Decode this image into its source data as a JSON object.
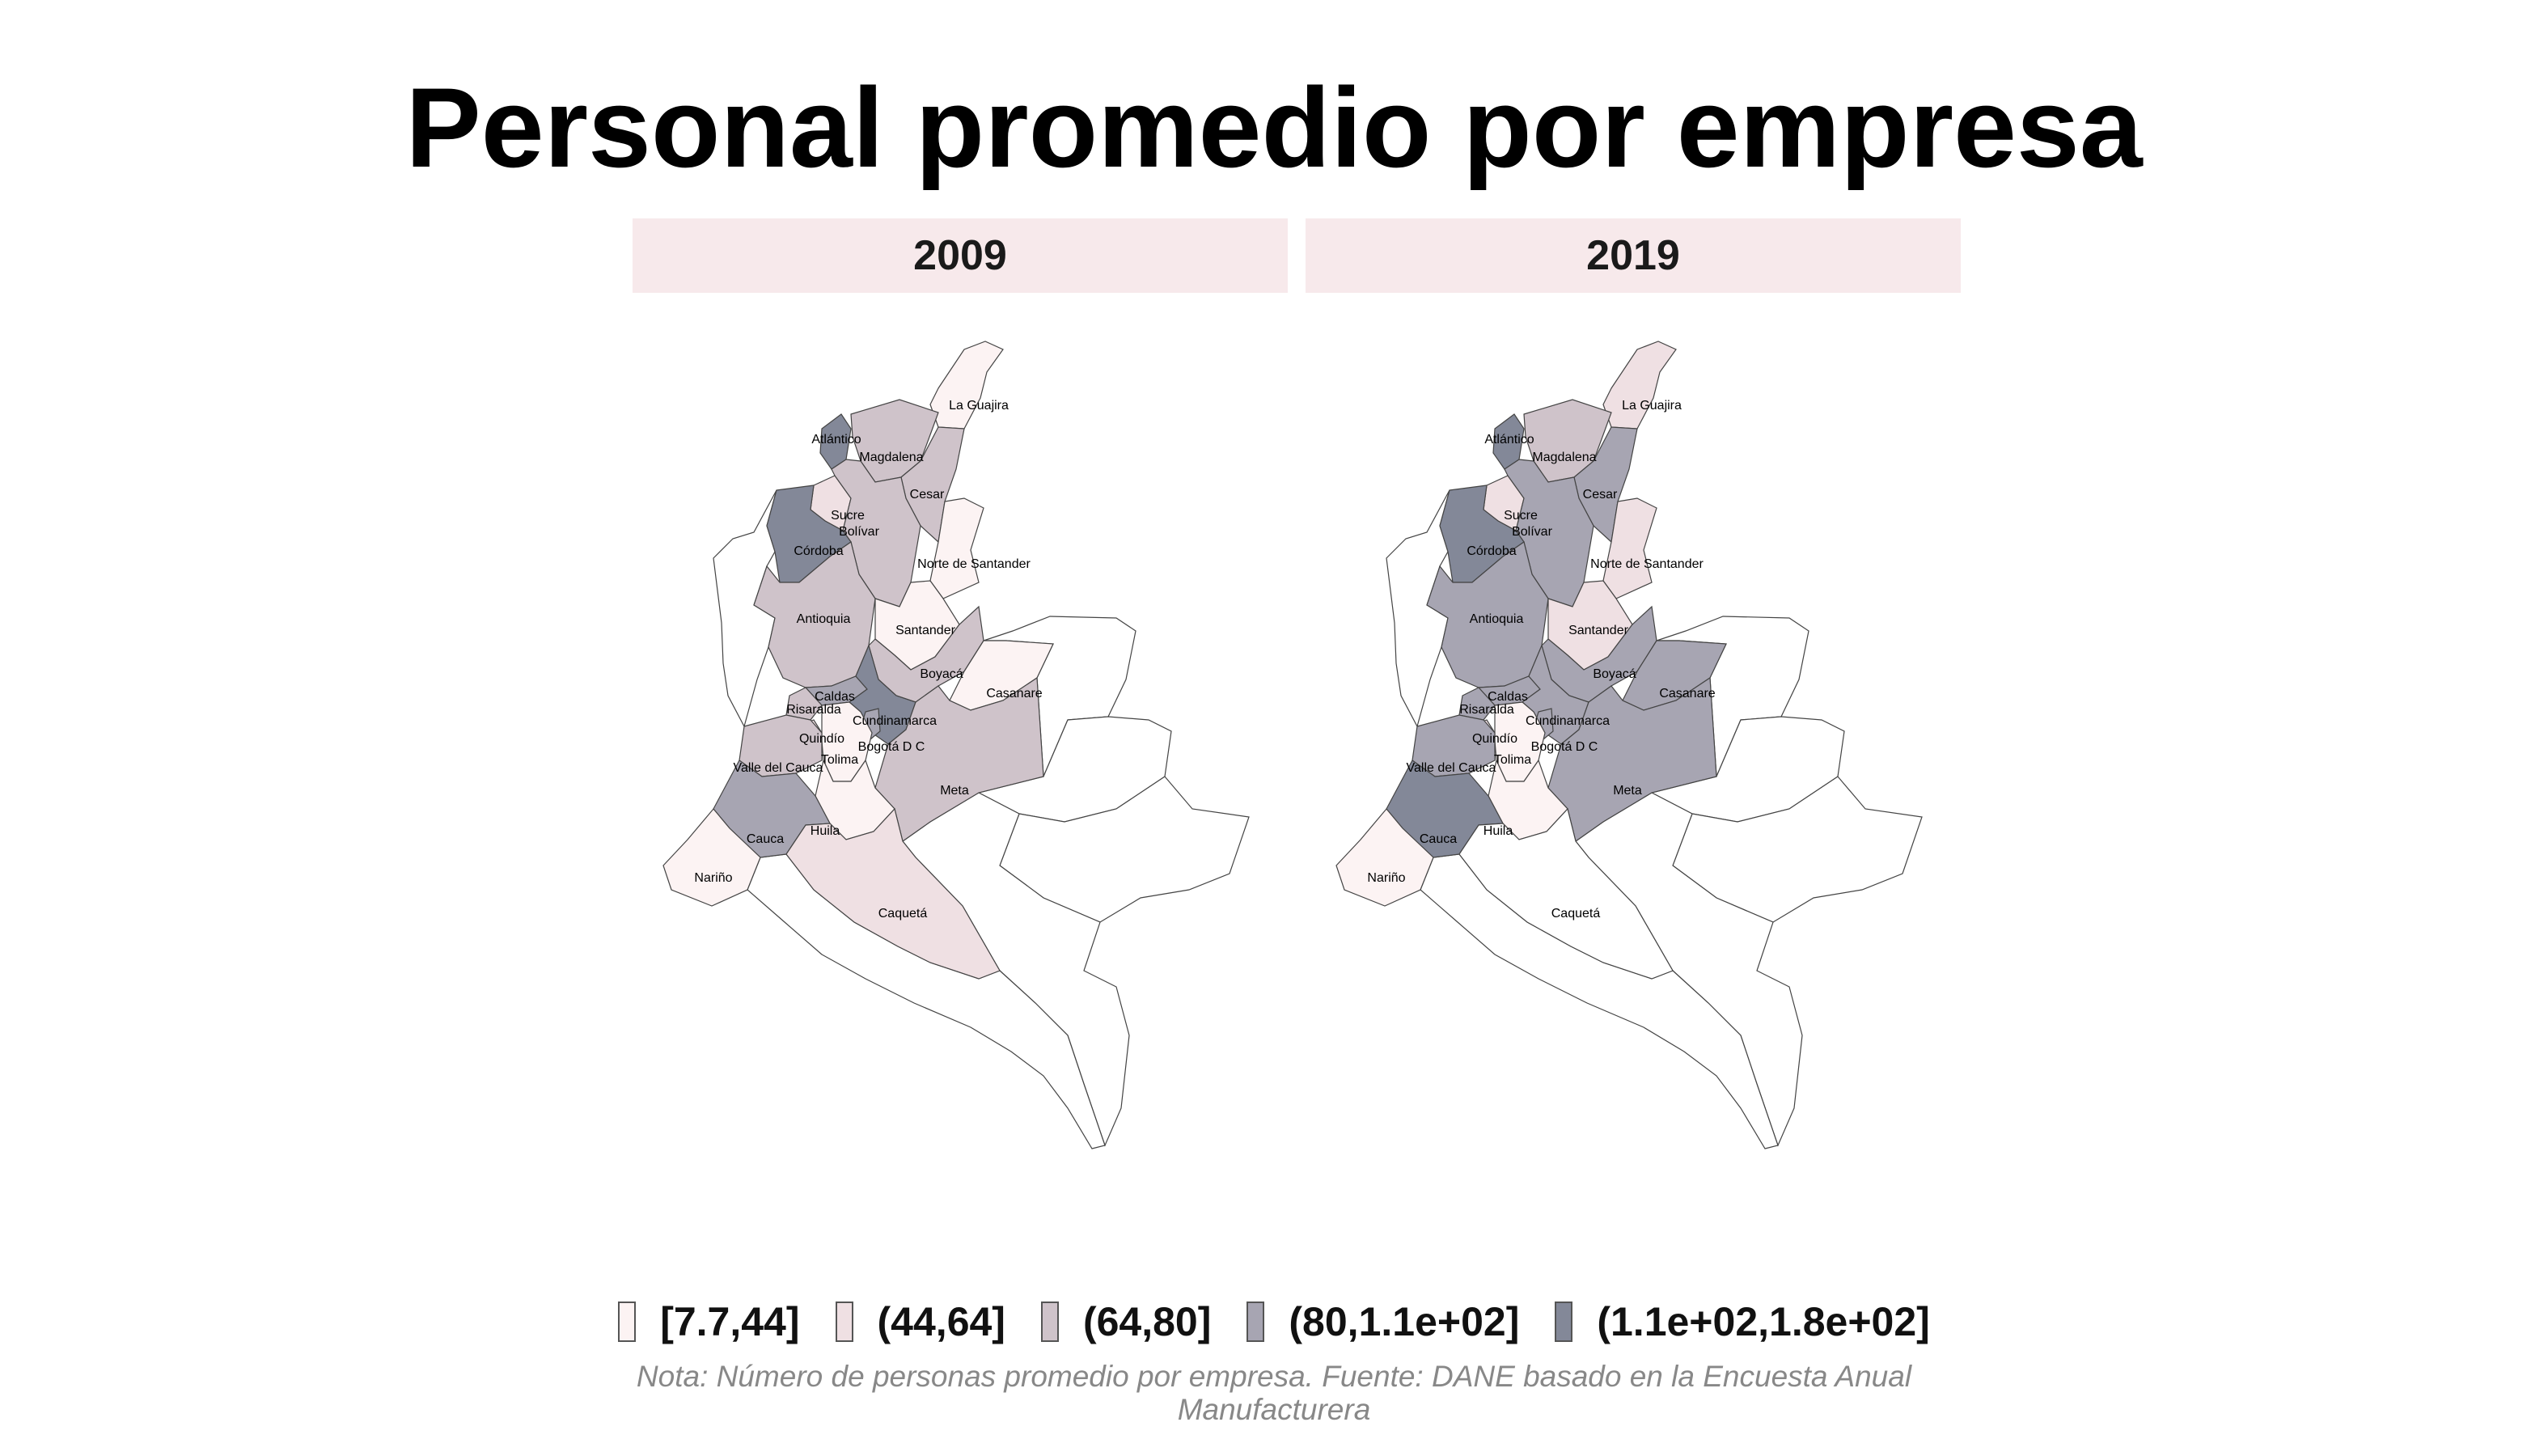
{
  "title": "Personal promedio por empresa",
  "panels": [
    {
      "year": "2009"
    },
    {
      "year": "2019"
    }
  ],
  "legend": [
    {
      "label": "[7.7,44]",
      "color": "#fcf3f3"
    },
    {
      "label": "(44,64]",
      "color": "#efe0e3"
    },
    {
      "label": "(64,80]",
      "color": "#cfc3ca"
    },
    {
      "label": "(80,1.1e+02]",
      "color": "#a7a5b2"
    },
    {
      "label": "(1.1e+02,1.8e+02]",
      "color": "#838898"
    }
  ],
  "note": "Nota: Número de personas promedio por empresa. Fuente: DANE basado en la Encuesta Anual Manufacturera",
  "departments": [
    "La Guajira",
    "Atlántico",
    "Magdalena",
    "Cesar",
    "Sucre",
    "Bolívar",
    "Córdoba",
    "Norte de Santander",
    "Antioquia",
    "Santander",
    "Boyacá",
    "Casanare",
    "Caldas",
    "Risaralda",
    "Cundinamarca",
    "Quindío",
    "Bogotá D.C.",
    "Tolima",
    "Valle del Cauca",
    "Meta",
    "Huila",
    "Cauca",
    "Nariño",
    "Caquetá"
  ],
  "classes_2009": {
    "La Guajira": "[7.7,44]",
    "Atlántico": "(1.1e+02,1.8e+02]",
    "Magdalena": "(64,80]",
    "Cesar": "(64,80]",
    "Sucre": "(44,64]",
    "Bolívar": "(64,80]",
    "Córdoba": "(1.1e+02,1.8e+02]",
    "Norte de Santander": "[7.7,44]",
    "Antioquia": "(64,80]",
    "Santander": "[7.7,44]",
    "Boyacá": "(64,80]",
    "Casanare": "[7.7,44]",
    "Caldas": "(80,1.1e+02]",
    "Risaralda": "(64,80]",
    "Cundinamarca": "(1.1e+02,1.8e+02]",
    "Quindío": "(44,64]",
    "Bogotá D.C.": "(80,1.1e+02]",
    "Tolima": "[7.7,44]",
    "Valle del Cauca": "(64,80]",
    "Meta": "(64,80]",
    "Huila": "[7.7,44]",
    "Cauca": "(80,1.1e+02]",
    "Nariño": "[7.7,44]",
    "Caquetá": "(44,64]"
  },
  "classes_2019": {
    "La Guajira": "(44,64]",
    "Atlántico": "(1.1e+02,1.8e+02]",
    "Magdalena": "(64,80]",
    "Cesar": "(80,1.1e+02]",
    "Sucre": "(44,64]",
    "Bolívar": "(80,1.1e+02]",
    "Córdoba": "(1.1e+02,1.8e+02]",
    "Norte de Santander": "(44,64]",
    "Antioquia": "(80,1.1e+02]",
    "Santander": "(44,64]",
    "Boyacá": "(80,1.1e+02]",
    "Casanare": "(80,1.1e+02]",
    "Caldas": "(80,1.1e+02]",
    "Risaralda": "(80,1.1e+02]",
    "Cundinamarca": "(80,1.1e+02]",
    "Quindío": "(44,64]",
    "Bogotá D.C.": "(80,1.1e+02]",
    "Tolima": "[7.7,44]",
    "Valle del Cauca": "(80,1.1e+02]",
    "Meta": "(80,1.1e+02]",
    "Huila": "[7.7,44]",
    "Cauca": "(1.1e+02,1.8e+02]",
    "Nariño": "[7.7,44]",
    "Caquetá": ""
  }
}
